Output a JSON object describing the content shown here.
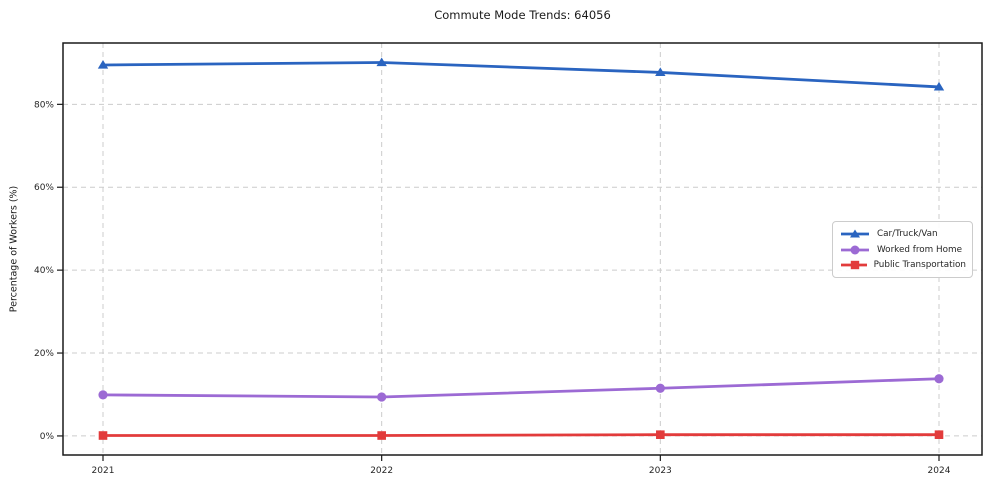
{
  "title": "Commute Mode Trends: 64056",
  "colors": {
    "car_truck_van": "#2a64c0",
    "worked_from_home": "#9c6ad4",
    "public_transportation": "#e23b3b",
    "gridline": "#cccccc",
    "spine": "#1a1a1a",
    "tick_text": "#262626"
  },
  "chart_data": {
    "type": "line",
    "title": "Commute Mode Trends: 64056",
    "xlabel": "",
    "ylabel": "Percentage of Workers (%)",
    "x": [
      2021,
      2022,
      2023,
      2024
    ],
    "x_tick_labels": [
      "2021",
      "2022",
      "2023",
      "2024"
    ],
    "yticks": [
      0,
      20,
      40,
      60,
      80
    ],
    "y_tick_labels": [
      "0%",
      "20%",
      "40%",
      "60%",
      "80%"
    ],
    "ylim": [
      -4.6,
      94.8
    ],
    "grid": true,
    "grid_style": "dashed",
    "legend_position": "center-right",
    "series": [
      {
        "name": "Car/Truck/Van",
        "color": "#2a64c0",
        "marker": "triangle",
        "values": [
          89.5,
          90.1,
          87.7,
          84.2
        ]
      },
      {
        "name": "Worked from Home",
        "color": "#9c6ad4",
        "marker": "circle",
        "values": [
          9.9,
          9.4,
          11.5,
          13.8
        ]
      },
      {
        "name": "Public Transportation",
        "color": "#e23b3b",
        "marker": "square",
        "values": [
          0.1,
          0.1,
          0.3,
          0.3
        ]
      }
    ]
  }
}
